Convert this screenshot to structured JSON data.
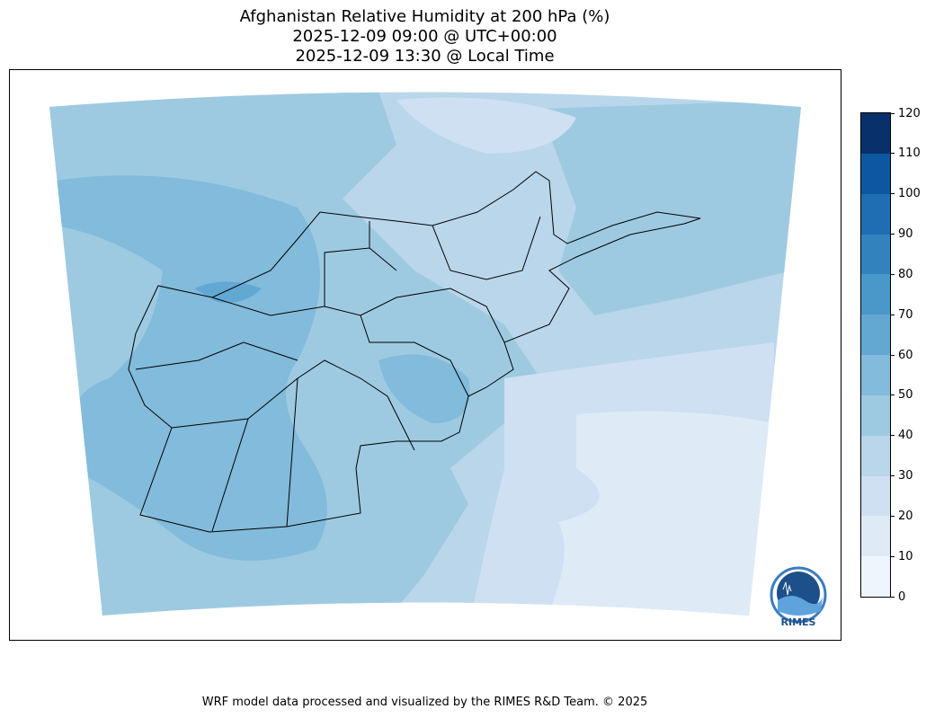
{
  "title": {
    "line1": "Afghanistan Relative Humidity at 200 hPa (%)",
    "line2": "2025-12-09 09:00 @ UTC+00:00",
    "line3": "2025-12-09 13:30 @ Local Time"
  },
  "colorbar": {
    "ticks": [
      "0",
      "10",
      "20",
      "30",
      "40",
      "50",
      "60",
      "70",
      "80",
      "90",
      "100",
      "110",
      "120"
    ],
    "colors": [
      "#eef5fc",
      "#deebf7",
      "#cee0f2",
      "#bad6eb",
      "#9ecae1",
      "#82bbdb",
      "#63a8d3",
      "#4a98c9",
      "#3282bd",
      "#1f6eb3",
      "#0d56a0",
      "#08306b"
    ]
  },
  "map": {
    "region": "Afghanistan",
    "variable": "Relative Humidity at 200 hPa",
    "range_shown": [
      10,
      60
    ]
  },
  "logo": {
    "text": "RIMES"
  },
  "footer": "WRF model data processed and visualized by the RIMES R&D Team. © 2025"
}
